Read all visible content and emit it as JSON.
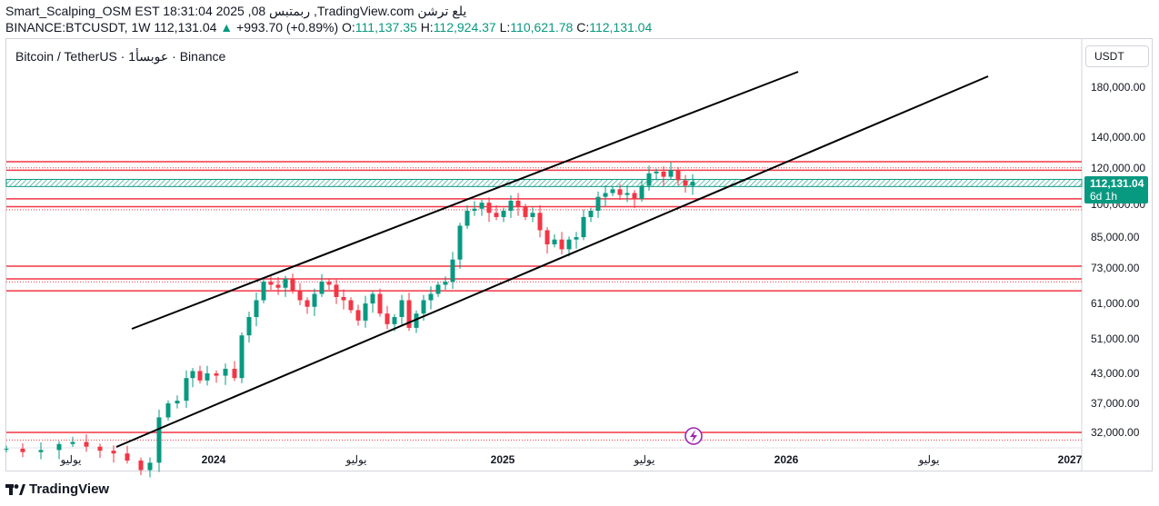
{
  "header": {
    "line1": "Smart_Scalping_OSM EST 18:31:04 2025 ,08 ربمتبس ,TradingView.com يلع ترشن",
    "symbol_full": "BINANCE:BTCUSDT, 1W",
    "last_price": "112,131.04",
    "change_arrow": "▲",
    "change": "+993.70 (+0.89%)",
    "open_label": "O:",
    "open": "111,137.35",
    "high_label": "H:",
    "high": "112,924.37",
    "low_label": "L:",
    "low": "110,621.78",
    "close_label": "C:",
    "close": "112,131.04"
  },
  "chart": {
    "title": "Bitcoin / TetherUS · 1عوبسأ · Binance",
    "currency": "USDT",
    "price_tag": {
      "price": "112,131.04",
      "countdown": "6d 1h"
    },
    "y_labels": [
      "180,000.00",
      "140,000.00",
      "120,000.00",
      "100,000.00",
      "85,000.00",
      "73,000.00",
      "61,000.00",
      "51,000.00",
      "43,000.00",
      "37,000.00",
      "32,000.00"
    ],
    "x_labels": [
      "يوليو",
      "2024",
      "يوليو",
      "2025",
      "يوليو",
      "2026",
      "يوليو",
      "2027"
    ],
    "horizontal_levels": [
      124000,
      118800,
      103000,
      99000,
      73500,
      69000,
      65000,
      32000
    ],
    "zone": {
      "low": 109500,
      "high": 113500
    },
    "channel_upper": [
      [
        0,
        63000
      ],
      [
        0,
        215000
      ]
    ],
    "colors": {
      "up": "#089981",
      "down": "#f23645",
      "level": "#f23645",
      "zone": "#089981",
      "trend": "#000000"
    }
  },
  "footer": {
    "brand": "TradingView"
  }
}
